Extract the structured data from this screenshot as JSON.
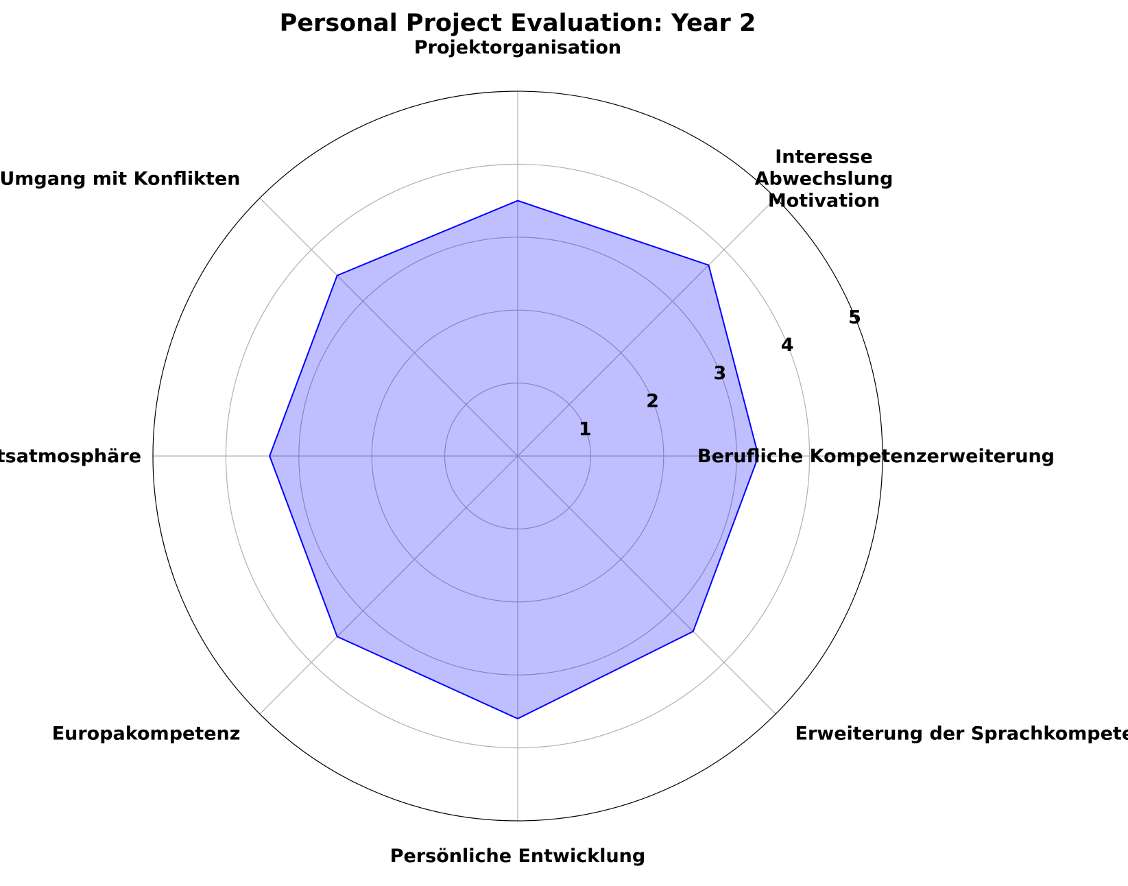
{
  "chart_data": {
    "type": "radar",
    "title": "Personal Project Evaluation: Year 2",
    "categories": [
      "Berufliche Kompetenzerweiterung",
      "Interesse\nAbwechslung\nMotivation",
      "Projektorganisation",
      "Umgang mit Konflikten",
      "Arbeitsatmosphäre",
      "Europakompetenz",
      "Persönliche Entwicklung",
      "Erweiterung der Sprachkompetenz"
    ],
    "series": [
      {
        "values": [
          3.3,
          3.7,
          3.5,
          3.5,
          3.4,
          3.5,
          3.6,
          3.4
        ]
      }
    ],
    "rlim": [
      0,
      5
    ],
    "rticks": [
      "1",
      "2",
      "3",
      "4",
      "5"
    ],
    "grid": true,
    "colors": {
      "line": "#0000ff",
      "fill": "#0000ff",
      "fill_opacity": 0.25,
      "grid": "#b0b0b0",
      "outer": "#000000"
    }
  }
}
